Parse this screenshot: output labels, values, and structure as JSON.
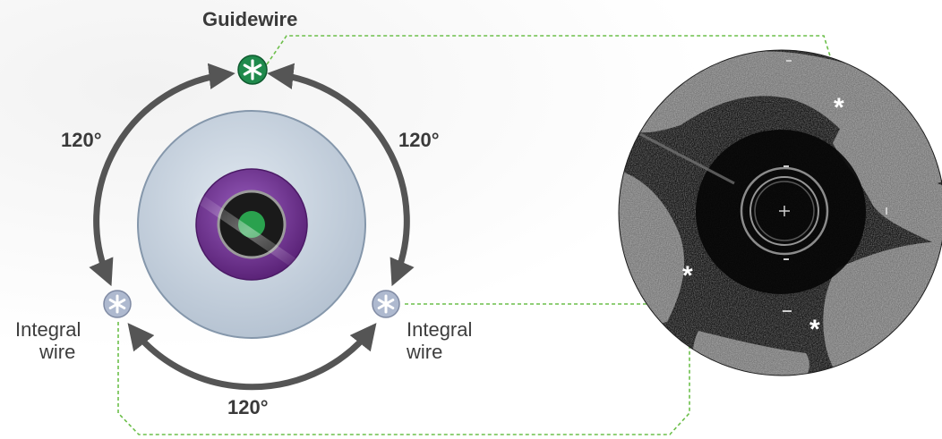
{
  "labels": {
    "guidewire": "Guidewire",
    "angle_upper_left": "120°",
    "angle_upper_right": "120°",
    "angle_bottom": "120°",
    "integral_left_line1": "Integral",
    "integral_left_line2": "wire",
    "integral_right_line1": "Integral",
    "integral_right_line2": "wire"
  },
  "colors": {
    "guidewire_marker": "#1f8a4c",
    "integral_marker": "#aeb9cf",
    "arrow": "#555555",
    "catheter_body": "#bcc8d6",
    "lumen_ring": "#6b2d8c",
    "core": "#2aa14e",
    "connector_line": "#6cbf4a"
  },
  "ivus_markers": [
    "*",
    "*",
    "*"
  ]
}
